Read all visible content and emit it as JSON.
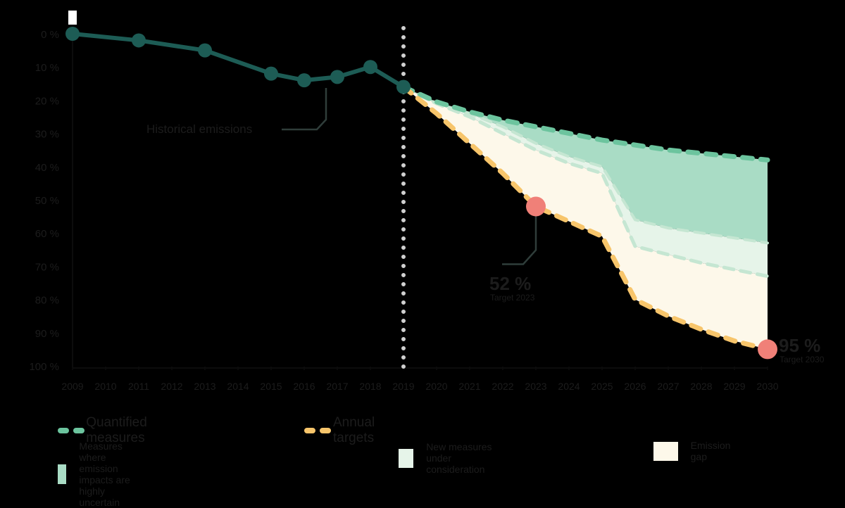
{
  "chart_data": {
    "type": "line",
    "title": "",
    "xlabel": "",
    "ylabel": "",
    "x_ticks": [
      "2009",
      "2010",
      "2011",
      "2012",
      "2013",
      "2014",
      "2015",
      "2016",
      "2017",
      "2018",
      "2019",
      "2020",
      "2021",
      "2022",
      "2023",
      "2024",
      "2025",
      "2026",
      "2027",
      "2028",
      "2029",
      "2030"
    ],
    "y_ticks": [
      "0 %",
      "10 %",
      "20 %",
      "30 %",
      "40 %",
      "50 %",
      "60 %",
      "70 %",
      "80 %",
      "90 %",
      "100 %"
    ],
    "ylim": [
      0,
      100
    ],
    "y_inverted": true,
    "xlim": [
      2009,
      2030
    ],
    "grid": false,
    "historical": {
      "name": "Historical emissions",
      "x": [
        2009,
        2011,
        2013,
        2015,
        2016,
        2017,
        2018,
        2019
      ],
      "y": [
        0,
        2,
        5,
        12,
        14,
        13,
        10,
        16
      ]
    },
    "projection_x": [
      2019,
      2020,
      2021,
      2022,
      2023,
      2024,
      2025,
      2026,
      2027,
      2028,
      2029,
      2030
    ],
    "series": [
      {
        "name": "Quantified measures",
        "y": [
          16,
          20.5,
          23.5,
          26,
          28,
          30,
          32,
          33.5,
          35,
          36,
          37,
          38
        ]
      },
      {
        "name": "Measures where emission impacts are highly uncertain",
        "y": [
          16,
          21,
          24,
          28,
          33,
          37,
          40,
          56,
          58.5,
          60,
          61.5,
          63
        ]
      },
      {
        "name": "New measures under consideration",
        "y": [
          16,
          21,
          25,
          30,
          35,
          39,
          42,
          64,
          66.5,
          69,
          71,
          73
        ]
      },
      {
        "name": "Annual targets",
        "y": [
          16,
          24,
          33,
          42,
          52,
          56.5,
          61,
          80,
          85,
          89,
          92.5,
          95
        ]
      }
    ],
    "annotations": [
      {
        "value": "52 %",
        "label": "Target 2023",
        "x": 2023,
        "y": 52
      },
      {
        "value": "95 %",
        "label": "Target 2030",
        "x": 2030,
        "y": 95
      }
    ],
    "divider_year": 2019,
    "legend": {
      "placement": "bottom",
      "items": [
        {
          "label": "Quantified measures",
          "kind": "dashed-line"
        },
        {
          "label": "Annual targets",
          "kind": "dashed-line"
        },
        {
          "label": "Measures where emission impacts are highly uncertain",
          "kind": "area"
        },
        {
          "label": "New measures under consideration",
          "kind": "area"
        },
        {
          "label": "Emission gap",
          "kind": "area"
        }
      ]
    },
    "colors": {
      "historical": "#1d5c55",
      "quantified": "#6cc49e",
      "uncertain_fill": "#a9dcc5",
      "new_measures_line": "#c5e6d2",
      "new_measures_fill": "#e6f4e9",
      "gap_fill": "#fdf8ea",
      "targets": "#f7c56b",
      "target_marker": "#f08078",
      "divider": "#d0d0d0",
      "text": "#1c1c1c"
    }
  }
}
